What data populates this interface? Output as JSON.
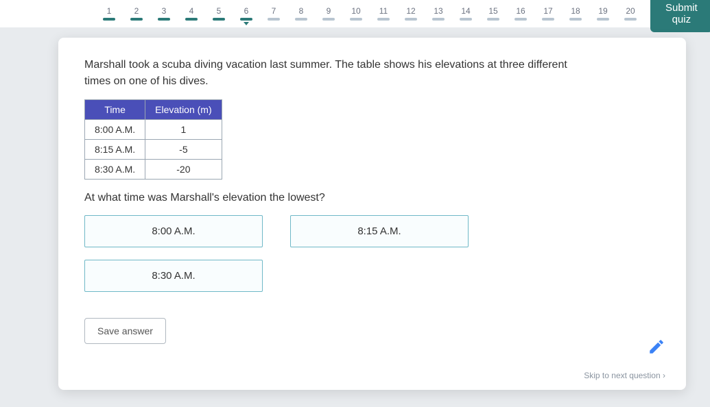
{
  "header": {
    "submit_label": "Submit quiz",
    "total_questions": 20,
    "answered_through": 5,
    "current_question": 6
  },
  "question": {
    "prompt": "Marshall took a scuba diving vacation last summer. The table shows his elevations at three different times on one of his dives.",
    "table": {
      "columns": [
        "Time",
        "Elevation (m)"
      ],
      "rows": [
        [
          "8:00 A.M.",
          "1"
        ],
        [
          "8:15 A.M.",
          "-5"
        ],
        [
          "8:30 A.M.",
          "-20"
        ]
      ],
      "header_bg": "#4a4fb8",
      "header_color": "#ffffff",
      "border_color": "#9aa6b2"
    },
    "sub_prompt": "At what time was Marshall's elevation the lowest?",
    "choices": [
      "8:00 A.M.",
      "8:15 A.M.",
      "8:30 A.M."
    ],
    "choice_border": "#6fb8c7"
  },
  "buttons": {
    "save_label": "Save answer",
    "skip_label": "Skip to next question"
  },
  "colors": {
    "accent": "#2b7a78",
    "pencil": "#3b82f6"
  }
}
